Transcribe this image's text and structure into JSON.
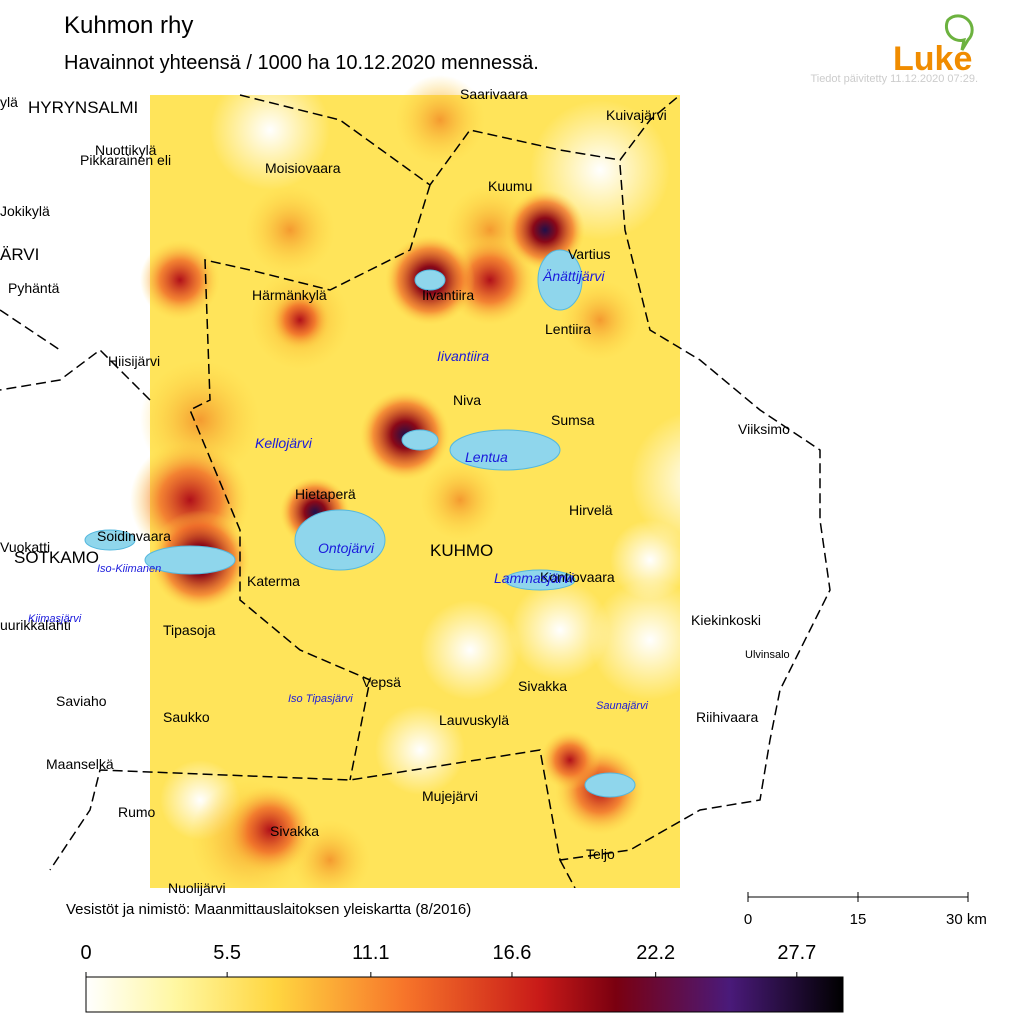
{
  "header": {
    "title": "Kuhmon rhy",
    "subtitle": "Havainnot yhteensä / 1000 ha 10.12.2020 mennessä.",
    "updated": "Tiedot päivitetty 11.12.2020 07:29.",
    "logo": "Luke"
  },
  "places": [
    "ylä",
    "HYRYNSALMI",
    "Saarivaara",
    "Kuivajärvi",
    "Nuottikylä",
    "Pikkarainen eli",
    "Moisiovaara",
    "Kuumu",
    "Jokikylä",
    "ÄRVI",
    "Vartius",
    "Pyhäntä",
    "Härmänkylä",
    "Iivantiira",
    "Lentiira",
    "Hiisijärvi",
    "Niva",
    "Sumsa",
    "Viiksimo",
    "Hietaperä",
    "Hirvelä",
    "Soidinvaara",
    "Vuokatti",
    "KUHMO",
    "SOTKAMO",
    "Katerma",
    "Kontiovaara",
    "Kiekinkoski",
    "uurikkalahti",
    "Tipasoja",
    "Ulvinsalo",
    "Vepsä",
    "Sivakka",
    "Saviaho",
    "Saukko",
    "Riihivaara",
    "Lauvuskylä",
    "Maanselkä",
    "Mujejärvi",
    "Rumo",
    "Sivakka",
    "Teljo",
    "Nuolijärvi"
  ],
  "waters": [
    "Änättijärvi",
    "Iivantiira",
    "Kellojärvi",
    "Lentua",
    "Ontojärvi",
    "Iso-Kiimanen",
    "Lammasjärvi",
    "Kiimasjärvi",
    "Iso Tipasjärvi",
    "Saunajärvi"
  ],
  "source": "Vesistöt ja nimistö: Maanmittauslaitoksen yleiskartta (8/2016)",
  "scale_bar": {
    "lim": [
      0,
      30
    ],
    "ticks": [
      0,
      15,
      {
        "value": 30,
        "label": "30 km"
      }
    ]
  },
  "colorbar": {
    "lim": [
      0,
      29.5
    ],
    "ticks": [
      0,
      5.5,
      11.1,
      16.6,
      22.2,
      27.7
    ]
  }
}
